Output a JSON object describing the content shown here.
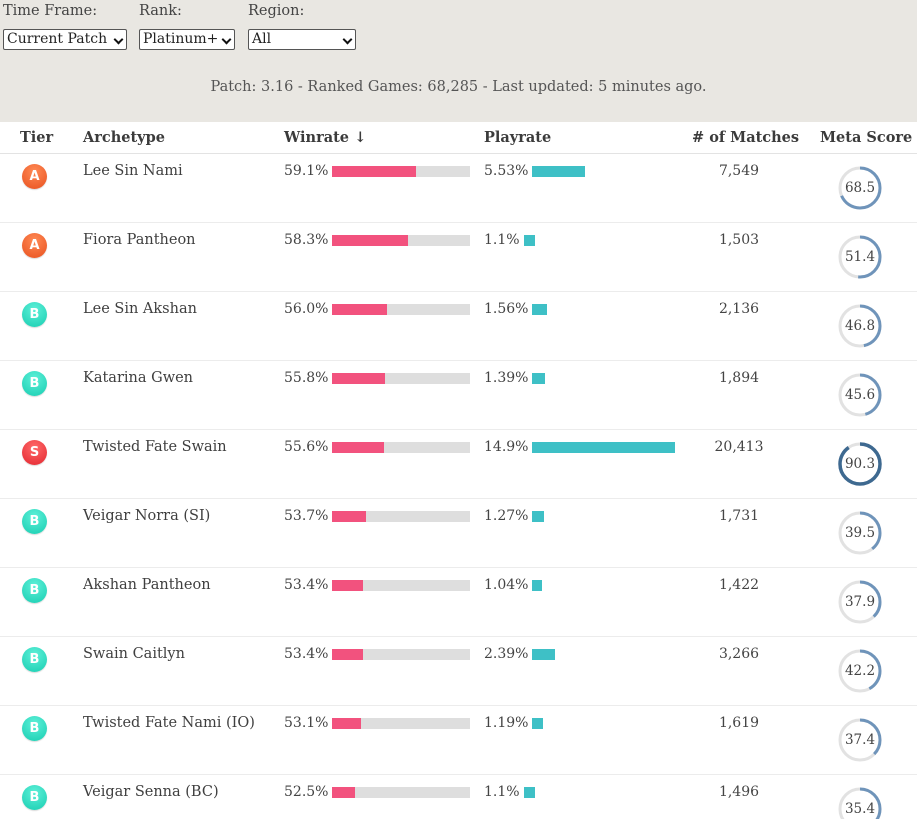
{
  "filters": {
    "time_frame": {
      "label": "Time Frame:",
      "value": "Current Patch"
    },
    "rank": {
      "label": "Rank:",
      "value": "Platinum+"
    },
    "region": {
      "label": "Region:",
      "value": "All"
    }
  },
  "meta": {
    "summary": "Patch: 3.16 - Ranked Games: 68,285 - Last updated: 5 minutes ago."
  },
  "table": {
    "headers": {
      "tier": "Tier",
      "archetype": "Archetype",
      "winrate": "Winrate ↓",
      "playrate": "Playrate",
      "matches": "# of Matches",
      "meta_score": "Meta Score"
    },
    "rows": [
      {
        "tier": "A",
        "archetype": "Lee Sin Nami",
        "winrate": "59.1%",
        "playrate": "5.53%",
        "matches": "7,549",
        "meta_score": "68.5"
      },
      {
        "tier": "A",
        "archetype": "Fiora Pantheon",
        "winrate": "58.3%",
        "playrate": "1.1%",
        "matches": "1,503",
        "meta_score": "51.4"
      },
      {
        "tier": "B",
        "archetype": "Lee Sin Akshan",
        "winrate": "56.0%",
        "playrate": "1.56%",
        "matches": "2,136",
        "meta_score": "46.8"
      },
      {
        "tier": "B",
        "archetype": "Katarina Gwen",
        "winrate": "55.8%",
        "playrate": "1.39%",
        "matches": "1,894",
        "meta_score": "45.6"
      },
      {
        "tier": "S",
        "archetype": "Twisted Fate Swain",
        "winrate": "55.6%",
        "playrate": "14.9%",
        "matches": "20,413",
        "meta_score": "90.3"
      },
      {
        "tier": "B",
        "archetype": "Veigar Norra (SI)",
        "winrate": "53.7%",
        "playrate": "1.27%",
        "matches": "1,731",
        "meta_score": "39.5"
      },
      {
        "tier": "B",
        "archetype": "Akshan Pantheon",
        "winrate": "53.4%",
        "playrate": "1.04%",
        "matches": "1,422",
        "meta_score": "37.9"
      },
      {
        "tier": "B",
        "archetype": "Swain Caitlyn",
        "winrate": "53.4%",
        "playrate": "2.39%",
        "matches": "3,266",
        "meta_score": "42.2"
      },
      {
        "tier": "B",
        "archetype": "Twisted Fate Nami (IO)",
        "winrate": "53.1%",
        "playrate": "1.19%",
        "matches": "1,619",
        "meta_score": "37.4"
      },
      {
        "tier": "B",
        "archetype": "Veigar Senna (BC)",
        "winrate": "52.5%",
        "playrate": "1.1%",
        "matches": "1,496",
        "meta_score": "35.4"
      }
    ]
  },
  "colors": {
    "winrate_bar": "#f2527e",
    "playrate_bar": "#3ec0c6",
    "bar_track": "#dedede",
    "tier_A": "#e8501e",
    "tier_B": "#18cdb1",
    "tier_S": "#e3262f",
    "score_ring": "#5b86b0"
  }
}
